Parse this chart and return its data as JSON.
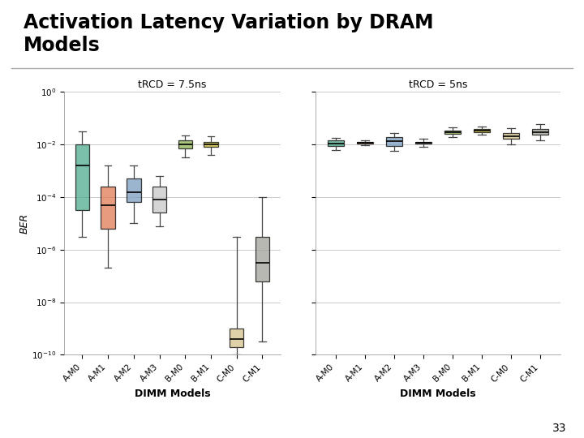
{
  "title": "Activation Latency Variation by DRAM\nModels",
  "categories": [
    "A-M0",
    "A-M1",
    "A-M2",
    "A-M3",
    "B-M0",
    "B-M1",
    "C-M0",
    "C-M1"
  ],
  "xlabel": "DIMM Models",
  "ylabel": "BER",
  "colors": [
    "#4dab8e",
    "#e07b54",
    "#7b9dbf",
    "#c8c8c8",
    "#8db050",
    "#c8b830",
    "#d4c18a",
    "#a0a098"
  ],
  "plot1_title": "tRCD = 7.5ns",
  "plot2_title": "tRCD = 5ns",
  "plot1_boxes": [
    {
      "q1": -4.5,
      "med": -2.8,
      "q3": -2.0,
      "whislo": -5.5,
      "whishi": -1.5
    },
    {
      "q1": -5.2,
      "med": -4.3,
      "q3": -3.6,
      "whislo": -6.7,
      "whishi": -2.8
    },
    {
      "q1": -4.2,
      "med": -3.8,
      "q3": -3.3,
      "whislo": -5.0,
      "whishi": -2.8
    },
    {
      "q1": -4.6,
      "med": -4.1,
      "q3": -3.6,
      "whislo": -5.1,
      "whishi": -3.2
    },
    {
      "q1": -2.15,
      "med": -2.0,
      "q3": -1.85,
      "whislo": -2.5,
      "whishi": -1.65
    },
    {
      "q1": -2.1,
      "med": -2.0,
      "q3": -1.9,
      "whislo": -2.4,
      "whishi": -1.7
    },
    {
      "q1": -9.7,
      "med": -9.4,
      "q3": -9.0,
      "whislo": -10.0,
      "whishi": -5.5
    },
    {
      "q1": -7.2,
      "med": -6.5,
      "q3": -5.5,
      "whislo": -9.5,
      "whishi": -4.0
    }
  ],
  "plot2_boxes": [
    {
      "q1": -2.05,
      "med": -1.95,
      "q3": -1.85,
      "whislo": -2.2,
      "whishi": -1.75
    },
    {
      "q1": -1.97,
      "med": -1.93,
      "q3": -1.89,
      "whislo": -2.02,
      "whishi": -1.85
    },
    {
      "q1": -2.05,
      "med": -1.88,
      "q3": -1.72,
      "whislo": -2.25,
      "whishi": -1.55
    },
    {
      "q1": -1.97,
      "med": -1.93,
      "q3": -1.89,
      "whislo": -2.08,
      "whishi": -1.78
    },
    {
      "q1": -1.58,
      "med": -1.52,
      "q3": -1.46,
      "whislo": -1.72,
      "whishi": -1.35
    },
    {
      "q1": -1.53,
      "med": -1.47,
      "q3": -1.41,
      "whislo": -1.62,
      "whishi": -1.3
    },
    {
      "q1": -1.78,
      "med": -1.67,
      "q3": -1.57,
      "whislo": -2.0,
      "whishi": -1.38
    },
    {
      "q1": -1.63,
      "med": -1.52,
      "q3": -1.42,
      "whislo": -1.85,
      "whishi": -1.22
    }
  ],
  "page_number": "33"
}
